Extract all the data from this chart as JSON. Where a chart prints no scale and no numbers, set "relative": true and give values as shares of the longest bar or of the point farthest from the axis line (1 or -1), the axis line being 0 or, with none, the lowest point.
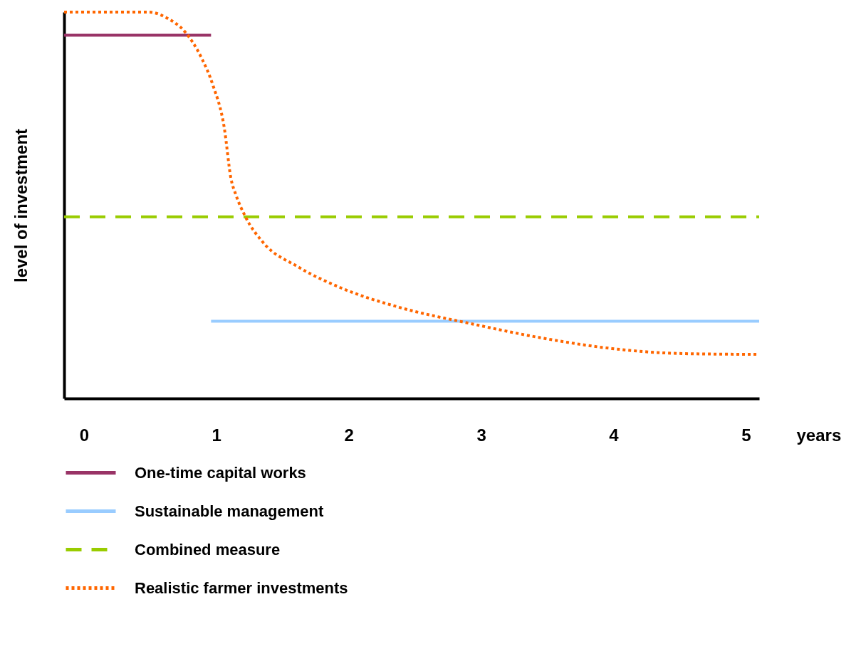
{
  "chart_data": {
    "type": "line",
    "relative": true,
    "xlabel": "years",
    "ylabel": "level of investment",
    "xlim": [
      -0.15,
      5.1
    ],
    "xticks": [
      0,
      1,
      2,
      3,
      4,
      5
    ],
    "grid": false,
    "legend": "bottom",
    "marker": "none",
    "series": [
      {
        "name": "One-time capital works",
        "color": "#993366",
        "line_style": "solid",
        "x": [
          -0.15,
          0.96
        ],
        "values": [
          0.94,
          0.94
        ]
      },
      {
        "name": "Sustainable management",
        "color": "#99ccff",
        "line_style": "solid",
        "x": [
          0.96,
          5.1
        ],
        "values": [
          0.2,
          0.2
        ]
      },
      {
        "name": "Combined measure",
        "color": "#99cc00",
        "line_style": "dashed",
        "x": [
          -0.15,
          5.1
        ],
        "values": [
          0.47,
          0.47
        ]
      },
      {
        "name": "Realistic farmer investments",
        "color": "#ff6600",
        "line_style": "dotted",
        "x": [
          -0.15,
          0.49,
          0.625,
          0.76,
          0.89,
          0.975,
          1.06,
          1.11,
          1.15,
          1.22,
          1.35,
          1.62,
          1.95,
          2.38,
          2.93,
          3.45,
          3.99,
          4.53,
          5.1
        ],
        "values": [
          1.0,
          1.0,
          0.985,
          0.95,
          0.88,
          0.81,
          0.7,
          0.57,
          0.525,
          0.47,
          0.405,
          0.34,
          0.285,
          0.236,
          0.193,
          0.157,
          0.129,
          0.116,
          0.114
        ]
      }
    ]
  }
}
